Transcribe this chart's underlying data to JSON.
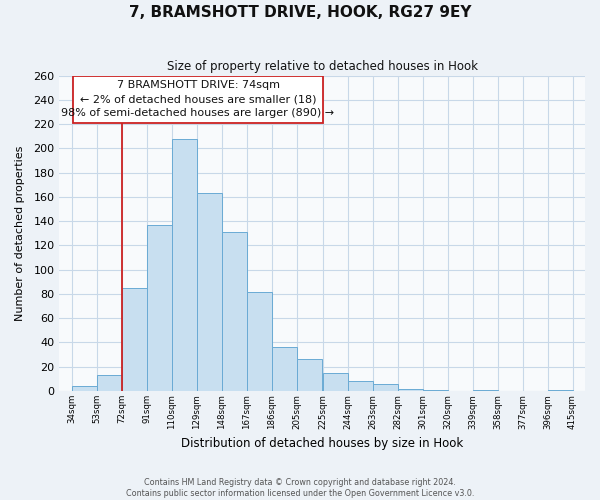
{
  "title": "7, BRAMSHOTT DRIVE, HOOK, RG27 9EY",
  "subtitle": "Size of property relative to detached houses in Hook",
  "xlabel": "Distribution of detached houses by size in Hook",
  "ylabel": "Number of detached properties",
  "bar_color": "#c8dff0",
  "bar_edge_color": "#6aaad4",
  "bin_edges": [
    34,
    53,
    72,
    91,
    110,
    129,
    148,
    167,
    186,
    205,
    225,
    244,
    263,
    282,
    301,
    320,
    339,
    358,
    377,
    396,
    415
  ],
  "bin_labels": [
    "34sqm",
    "53sqm",
    "72sqm",
    "91sqm",
    "110sqm",
    "129sqm",
    "148sqm",
    "167sqm",
    "186sqm",
    "205sqm",
    "225sqm",
    "244sqm",
    "263sqm",
    "282sqm",
    "301sqm",
    "320sqm",
    "339sqm",
    "358sqm",
    "377sqm",
    "396sqm",
    "415sqm"
  ],
  "values": [
    4,
    13,
    85,
    137,
    208,
    163,
    131,
    82,
    36,
    26,
    15,
    8,
    6,
    2,
    1,
    0,
    1,
    0,
    0,
    1
  ],
  "ylim": [
    0,
    260
  ],
  "yticks": [
    0,
    20,
    40,
    60,
    80,
    100,
    120,
    140,
    160,
    180,
    200,
    220,
    240,
    260
  ],
  "property_line_x": 72,
  "ann_line1": "7 BRAMSHOTT DRIVE: 74sqm",
  "ann_line2": "← 2% of detached houses are smaller (18)",
  "ann_line3": "98% of semi-detached houses are larger (890) →",
  "footer_line1": "Contains HM Land Registry data © Crown copyright and database right 2024.",
  "footer_line2": "Contains public sector information licensed under the Open Government Licence v3.0.",
  "background_color": "#edf2f7",
  "plot_bg_color": "#f8fafc",
  "grid_color": "#c8d8e8",
  "title_color": "#111111"
}
